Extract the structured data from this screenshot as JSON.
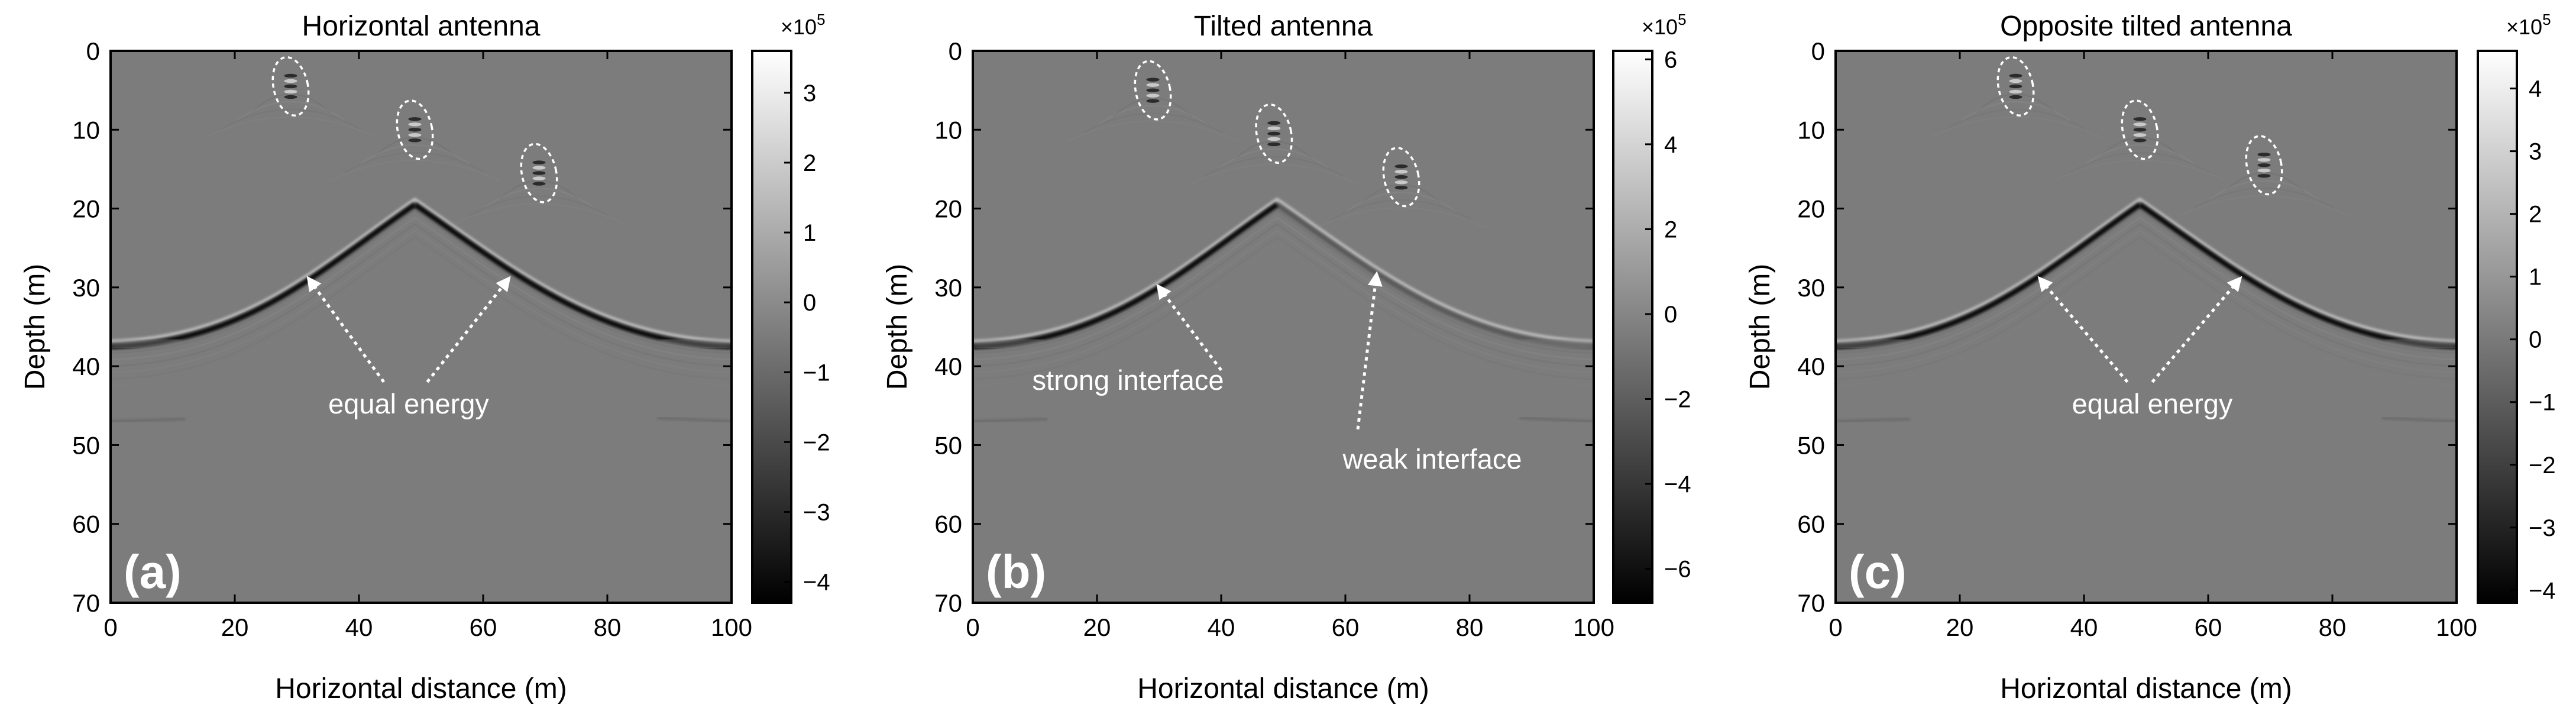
{
  "colors": {
    "background": "#ffffff",
    "axis": "#000000",
    "annotation": "#ffffff",
    "image_gray": "#7c7c7c"
  },
  "chart_data": [
    {
      "type": "heatmap",
      "panel_label": "(a)",
      "title": "Horizontal antenna",
      "xlabel": "Horizontal distance (m)",
      "ylabel": "Depth (m)",
      "xlim": [
        0,
        100
      ],
      "ylim": [
        70,
        0
      ],
      "xticks": [
        0,
        20,
        40,
        60,
        80,
        100
      ],
      "yticks": [
        0,
        10,
        20,
        30,
        40,
        50,
        60,
        70
      ],
      "colorbar": {
        "multiplier_base": "×10",
        "multiplier_exp": "5",
        "range": [
          -4.3,
          3.6
        ],
        "ticks": [
          3,
          2,
          1,
          0,
          -1,
          -2,
          -3,
          -4
        ],
        "tick_labels": [
          "3",
          "2",
          "1",
          "0",
          "−1",
          "−2",
          "−3",
          "−4"
        ]
      },
      "interface": {
        "apex_x": 49,
        "apex_depth": 19.5,
        "left_end": [
          0,
          37.5
        ],
        "right_end": [
          100,
          37.5
        ],
        "left_strength": 1.0,
        "right_strength": 1.0
      },
      "circled_targets": [
        {
          "x": 29,
          "depth": 4.5
        },
        {
          "x": 49,
          "depth": 10
        },
        {
          "x": 69,
          "depth": 15.5
        }
      ],
      "annotations": [
        {
          "text": "equal energy",
          "x": 48,
          "depth": 46
        }
      ],
      "arrows": [
        {
          "from": [
            44,
            42
          ],
          "to": [
            32,
            29
          ]
        },
        {
          "from": [
            51,
            42
          ],
          "to": [
            64,
            29
          ]
        }
      ]
    },
    {
      "type": "heatmap",
      "panel_label": "(b)",
      "title": "Tilted antenna",
      "xlabel": "Horizontal distance (m)",
      "ylabel": "Depth (m)",
      "xlim": [
        0,
        100
      ],
      "ylim": [
        70,
        0
      ],
      "xticks": [
        0,
        20,
        40,
        60,
        80,
        100
      ],
      "yticks": [
        0,
        10,
        20,
        30,
        40,
        50,
        60,
        70
      ],
      "colorbar": {
        "multiplier_base": "×10",
        "multiplier_exp": "5",
        "range": [
          -6.8,
          6.2
        ],
        "ticks": [
          6,
          4,
          2,
          0,
          -2,
          -4,
          -6
        ],
        "tick_labels": [
          "6",
          "4",
          "2",
          "0",
          "−2",
          "−4",
          "−6"
        ]
      },
      "interface": {
        "apex_x": 49,
        "apex_depth": 19.5,
        "left_end": [
          0,
          37.5
        ],
        "right_end": [
          100,
          37.5
        ],
        "left_strength": 1.0,
        "right_strength": 0.3
      },
      "circled_targets": [
        {
          "x": 29,
          "depth": 5
        },
        {
          "x": 48.5,
          "depth": 10.5
        },
        {
          "x": 69,
          "depth": 16
        }
      ],
      "annotations": [
        {
          "text": "strong interface",
          "x": 25,
          "depth": 43
        },
        {
          "text": "weak interface",
          "x": 74,
          "depth": 53
        }
      ],
      "arrows": [
        {
          "from": [
            40,
            40.5
          ],
          "to": [
            30,
            30
          ]
        },
        {
          "from": [
            62,
            48
          ],
          "to": [
            65,
            28.5
          ]
        }
      ]
    },
    {
      "type": "heatmap",
      "panel_label": "(c)",
      "title": "Opposite tilted antenna",
      "xlabel": "Horizontal distance (m)",
      "ylabel": "Depth (m)",
      "xlim": [
        0,
        100
      ],
      "ylim": [
        70,
        0
      ],
      "xticks": [
        0,
        20,
        40,
        60,
        80,
        100
      ],
      "yticks": [
        0,
        10,
        20,
        30,
        40,
        50,
        60,
        70
      ],
      "colorbar": {
        "multiplier_base": "×10",
        "multiplier_exp": "5",
        "range": [
          -4.2,
          4.6
        ],
        "ticks": [
          4,
          3,
          2,
          1,
          0,
          -1,
          -2,
          -3,
          -4
        ],
        "tick_labels": [
          "4",
          "3",
          "2",
          "1",
          "0",
          "−1",
          "−2",
          "−3",
          "−4"
        ]
      },
      "interface": {
        "apex_x": 49,
        "apex_depth": 19.5,
        "left_end": [
          0,
          37.5
        ],
        "right_end": [
          100,
          37.5
        ],
        "left_strength": 1.0,
        "right_strength": 1.0
      },
      "circled_targets": [
        {
          "x": 29,
          "depth": 4.5
        },
        {
          "x": 49,
          "depth": 10
        },
        {
          "x": 69,
          "depth": 14.5
        }
      ],
      "annotations": [
        {
          "text": "equal energy",
          "x": 51,
          "depth": 46
        }
      ],
      "arrows": [
        {
          "from": [
            47,
            42
          ],
          "to": [
            33,
            29
          ]
        },
        {
          "from": [
            51,
            42
          ],
          "to": [
            65,
            29
          ]
        }
      ]
    }
  ]
}
